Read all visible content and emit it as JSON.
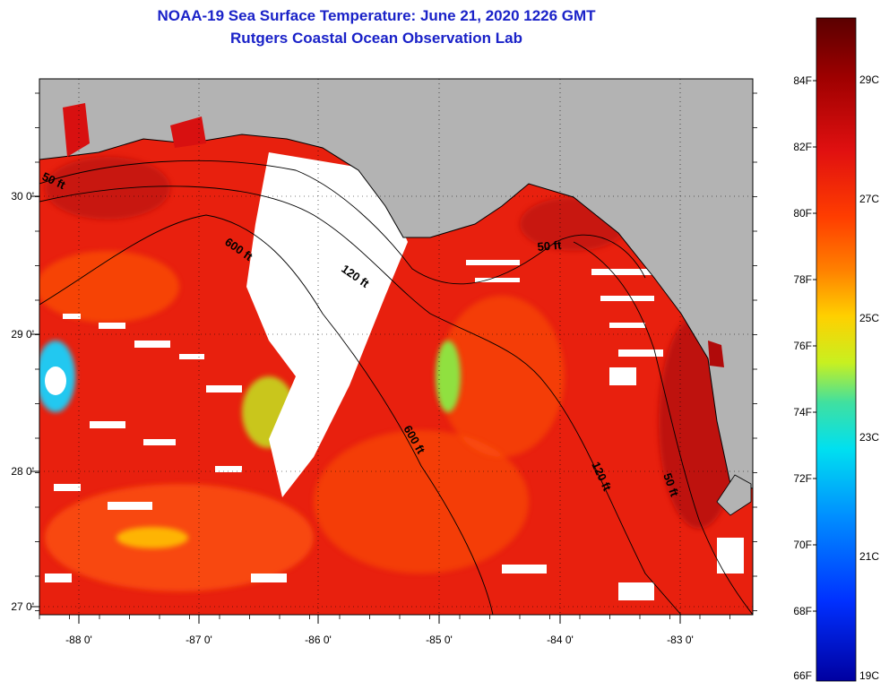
{
  "title": {
    "line1": "NOAA-19 Sea Surface Temperature:  June 21, 2020 1226 GMT",
    "line2": "Rutgers Coastal Ocean Observation Lab"
  },
  "axes": {
    "lon_labels": [
      "-88 0'",
      "-87 0'",
      "-86 0'",
      "-85 0'",
      "-84 0'",
      "-83 0'"
    ],
    "lat_labels": [
      "30 0'",
      "29 0'",
      "28 0'",
      "27 0'"
    ]
  },
  "contours": {
    "labels": [
      "50 ft",
      "600 ft",
      "120 ft",
      "50 ft",
      "600 ft",
      "120 ft",
      "50 ft"
    ]
  },
  "colorbar": {
    "fahrenheit_labels": [
      "84F",
      "82F",
      "80F",
      "78F",
      "76F",
      "74F",
      "72F",
      "70F",
      "68F",
      "66F"
    ],
    "celsius_labels": [
      "29C",
      "27C",
      "25C",
      "23C",
      "21C",
      "19C"
    ],
    "colors": [
      "#5a0000",
      "#9e0000",
      "#e01010",
      "#ff3d00",
      "#ff8000",
      "#ffd000",
      "#c8f020",
      "#40e0a0",
      "#00e0f0",
      "#0090ff",
      "#0030ff",
      "#0000a0"
    ]
  },
  "colors": {
    "land": "#b3b3b3",
    "sea_warm": "#e8200e",
    "sea_hot": "#b30d0d",
    "sea_mid": "#ff5a0a",
    "cloud": "#ffffff",
    "title": "#1a22c8"
  }
}
